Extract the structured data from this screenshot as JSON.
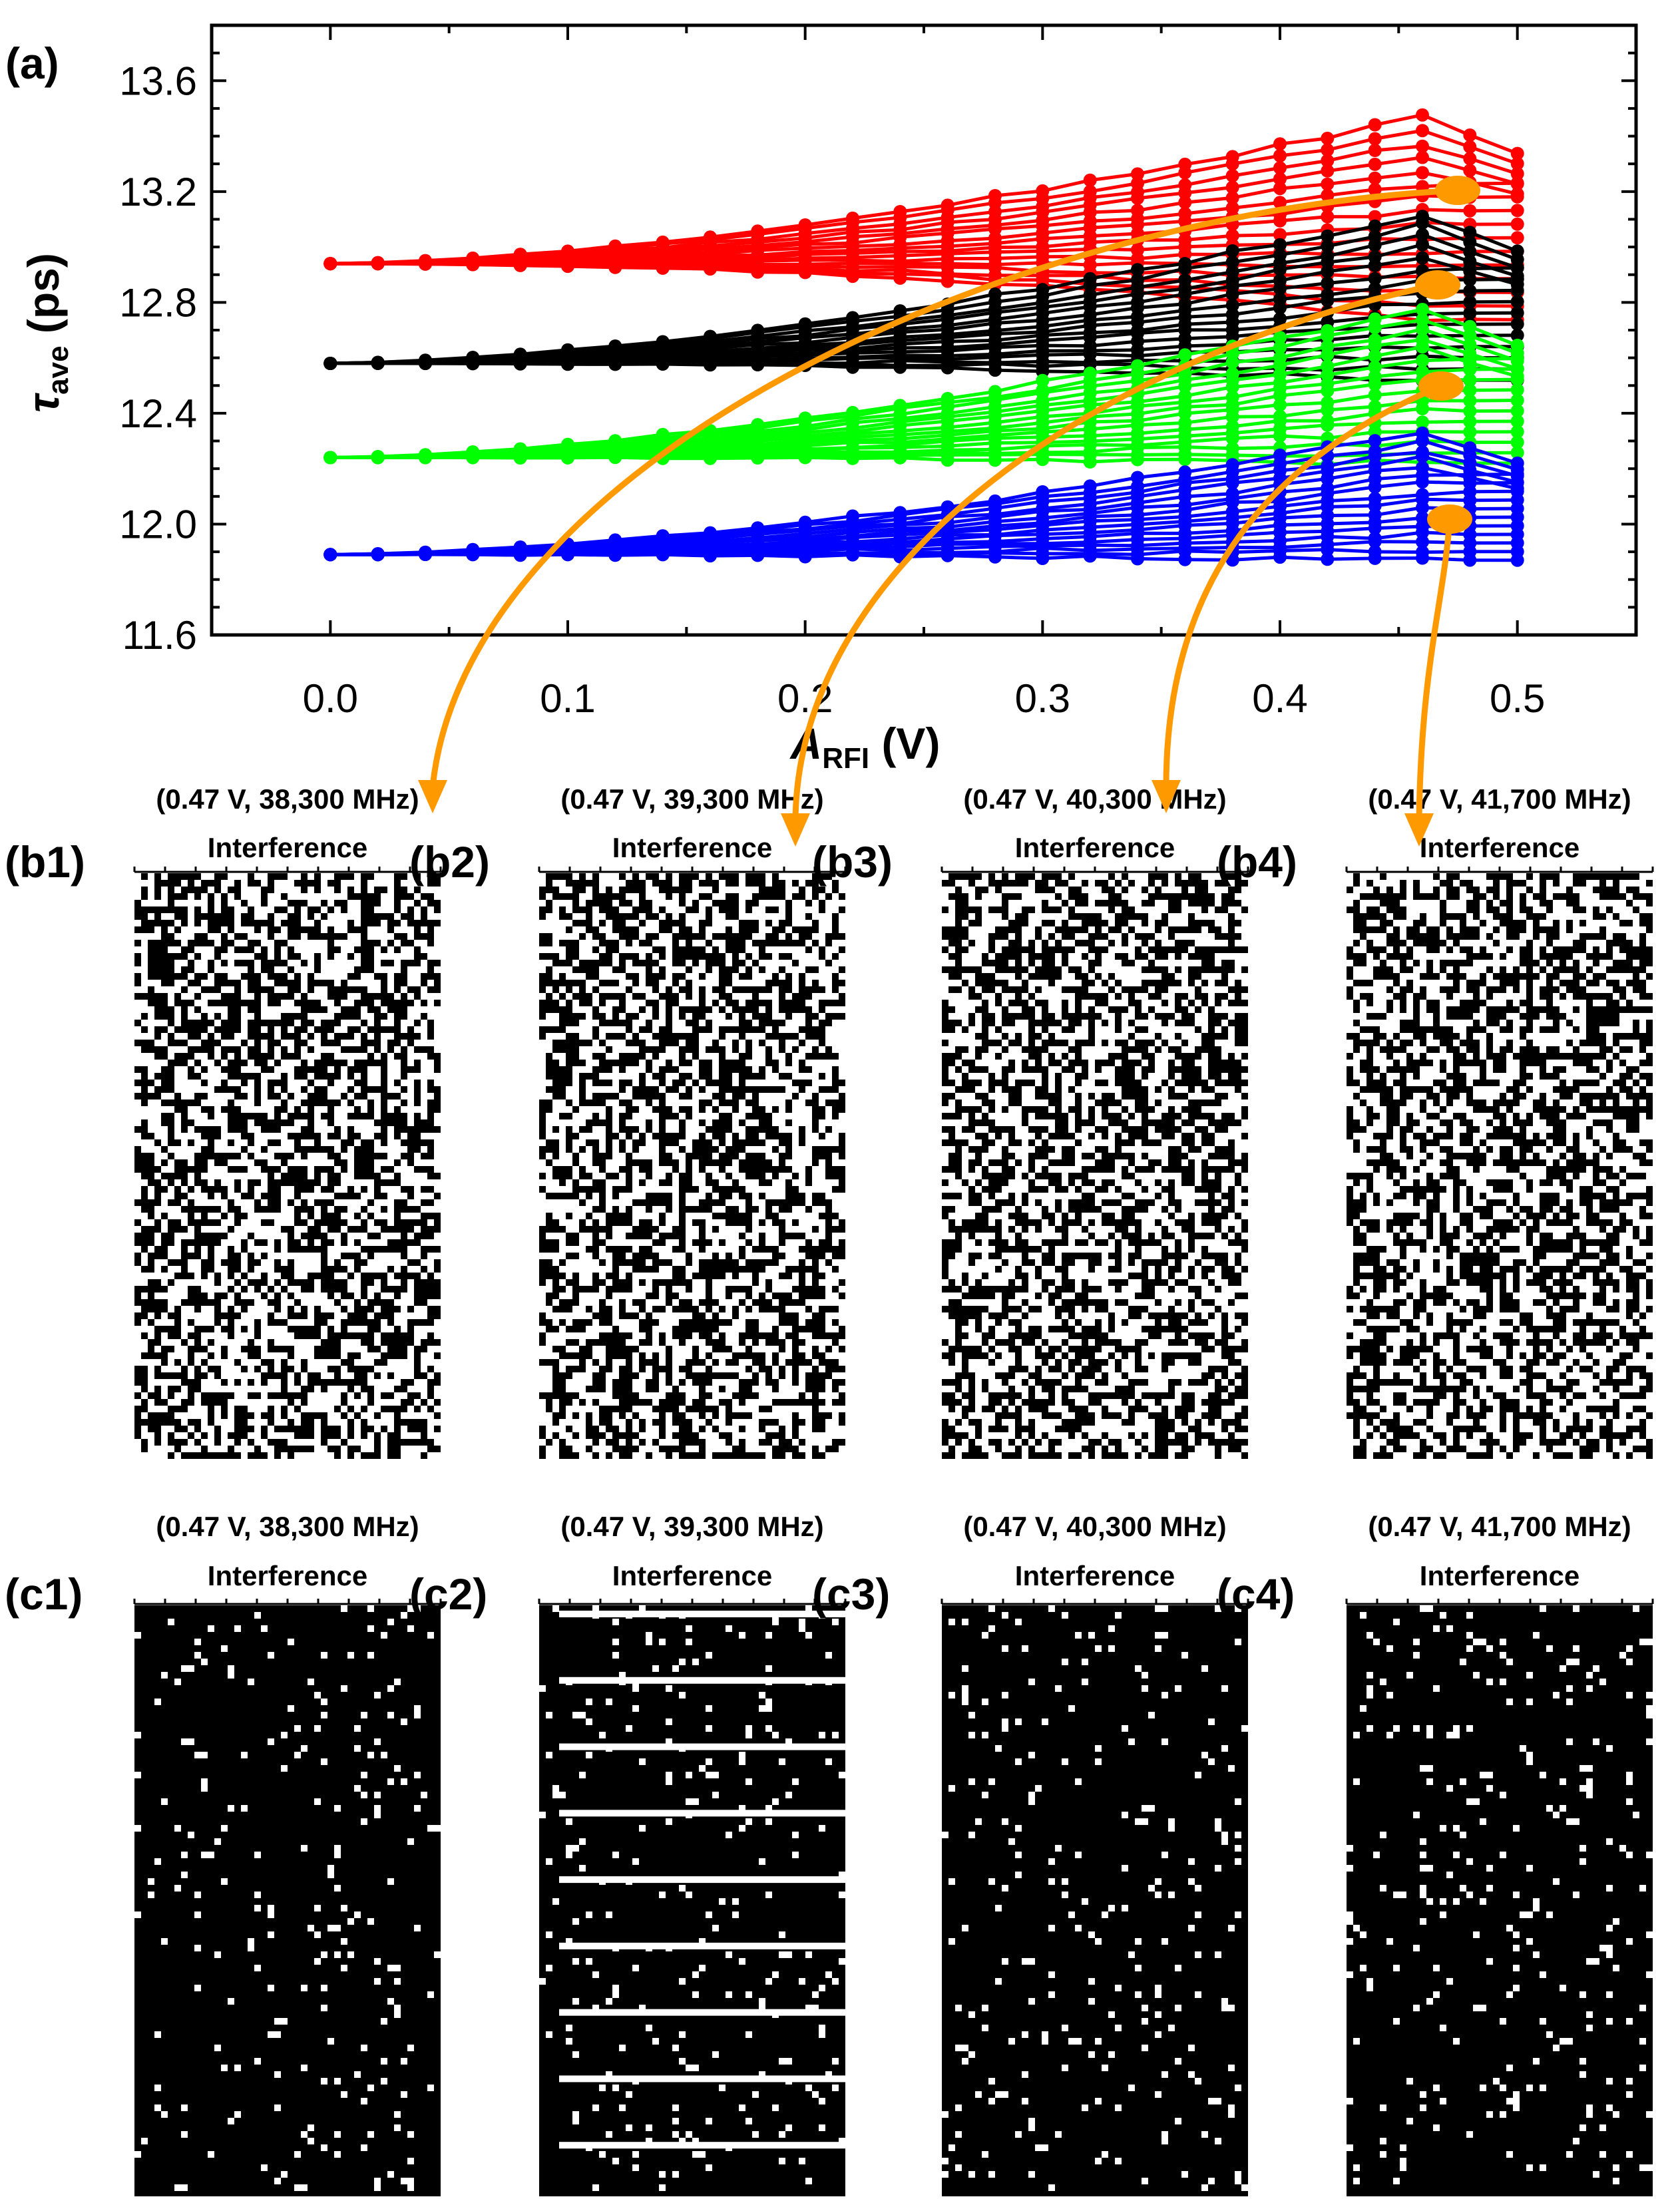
{
  "chart_data": {
    "type": "line",
    "panel_label": "(a)",
    "xlabel_main": "A",
    "xlabel_sub": "RFI",
    "xlabel_unit": " (V)",
    "ylabel_main": "τ",
    "ylabel_sub": "ave",
    "ylabel_unit": " (ps)",
    "xlim": [
      -0.05,
      0.55
    ],
    "ylim": [
      11.6,
      13.8
    ],
    "x_ticks": [
      0.0,
      0.1,
      0.2,
      0.3,
      0.4,
      0.5
    ],
    "x_tick_labels": [
      "0.0",
      "0.1",
      "0.2",
      "0.3",
      "0.4",
      "0.5"
    ],
    "y_ticks": [
      11.6,
      12.0,
      12.4,
      12.8,
      13.2,
      13.6
    ],
    "y_tick_labels": [
      "11.6",
      "12.0",
      "12.4",
      "12.8",
      "13.2",
      "13.6"
    ],
    "x": [
      0.0,
      0.02,
      0.04,
      0.06,
      0.08,
      0.1,
      0.12,
      0.14,
      0.16,
      0.18,
      0.2,
      0.22,
      0.24,
      0.26,
      0.28,
      0.3,
      0.32,
      0.34,
      0.36,
      0.38,
      0.4,
      0.42,
      0.44,
      0.46,
      0.48,
      0.5
    ],
    "series": [
      {
        "name": "red",
        "color": "#ff0000",
        "start": 12.94,
        "min_end": 12.74,
        "max_peak": 13.47
      },
      {
        "name": "black",
        "color": "#000000",
        "start": 12.58,
        "min_end": 12.52,
        "max_peak": 13.12
      },
      {
        "name": "green",
        "color": "#00ff00",
        "start": 12.24,
        "min_end": 12.22,
        "max_peak": 12.78
      },
      {
        "name": "blue",
        "color": "#0000ff",
        "start": 11.89,
        "min_end": 11.87,
        "max_peak": 12.33
      }
    ],
    "curves_per_series": 16,
    "annotation_color": "#ff9900"
  },
  "row_b": {
    "panels": [
      {
        "label": "(b1)",
        "params": "(0.47 V, 38,300 MHz)",
        "title": "Interference",
        "density": 0.5
      },
      {
        "label": "(b2)",
        "params": "(0.47 V, 39,300 MHz)",
        "title": "Interference",
        "density": 0.5
      },
      {
        "label": "(b3)",
        "params": "(0.47 V, 40,300 MHz)",
        "title": "Interference",
        "density": 0.5
      },
      {
        "label": "(b4)",
        "params": "(0.47 V, 41,700 MHz)",
        "title": "Interference",
        "density": 0.5
      }
    ]
  },
  "row_c": {
    "panels": [
      {
        "label": "(c1)",
        "params": "(0.47 V, 38,300 MHz)",
        "title": "Interference",
        "density": 0.06
      },
      {
        "label": "(c2)",
        "params": "(0.47 V, 39,300 MHz)",
        "title": "Interference",
        "density": 0.06
      },
      {
        "label": "(c3)",
        "params": "(0.47 V, 40,300 MHz)",
        "title": "Interference",
        "density": 0.06
      },
      {
        "label": "(c4)",
        "params": "(0.47 V, 41,700 MHz)",
        "title": "Interference",
        "density": 0.06
      }
    ]
  }
}
